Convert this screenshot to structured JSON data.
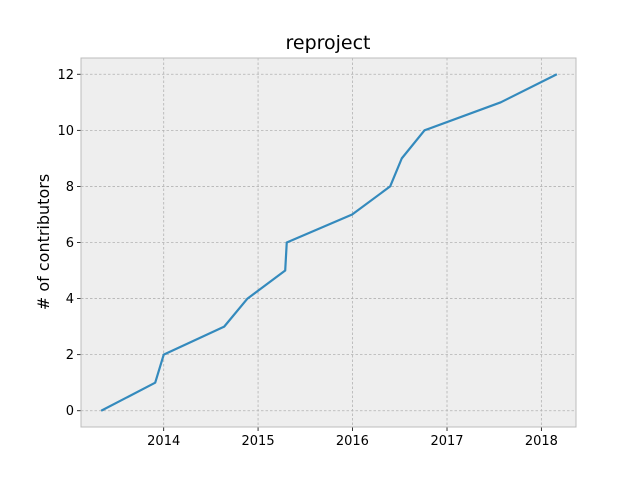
{
  "chart_data": {
    "type": "line",
    "title": "reproject",
    "xlabel": "",
    "ylabel": "# of contributors",
    "x_ticks": [
      "2014",
      "2015",
      "2016",
      "2017",
      "2018"
    ],
    "y_ticks": [
      "0",
      "2",
      "4",
      "6",
      "8",
      "10",
      "12"
    ],
    "xlim": [
      "2013-02-15",
      "2018-05-15"
    ],
    "ylim": [
      -0.58,
      12.58
    ],
    "grid": true,
    "legend": "none",
    "series": [
      {
        "color": "#348abd",
        "points": [
          {
            "x": "2013-05-04",
            "y": 0
          },
          {
            "x": "2013-11-29",
            "y": 1
          },
          {
            "x": "2014-01-01",
            "y": 2
          },
          {
            "x": "2014-08-23",
            "y": 3
          },
          {
            "x": "2014-11-21",
            "y": 4
          },
          {
            "x": "2015-04-16",
            "y": 5
          },
          {
            "x": "2015-04-22",
            "y": 6
          },
          {
            "x": "2015-12-31",
            "y": 7
          },
          {
            "x": "2016-05-26",
            "y": 8
          },
          {
            "x": "2016-07-10",
            "y": 9
          },
          {
            "x": "2016-10-06",
            "y": 10
          },
          {
            "x": "2017-07-28",
            "y": 11
          },
          {
            "x": "2018-03-02",
            "y": 12
          }
        ]
      }
    ]
  },
  "style": {
    "axes_background": "#eeeeee",
    "grid_color": "#b2b2b2",
    "frame_color": "#bcbcbc",
    "line_color": "#348abd"
  }
}
